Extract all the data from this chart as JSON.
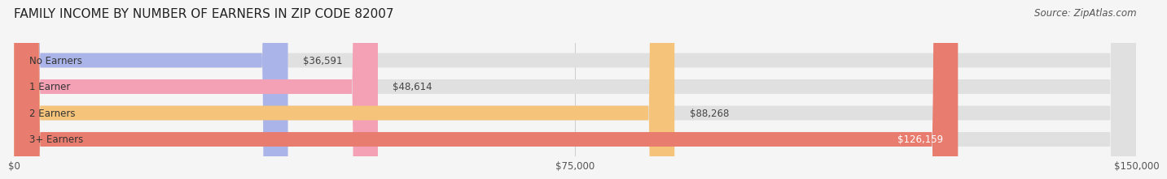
{
  "title": "FAMILY INCOME BY NUMBER OF EARNERS IN ZIP CODE 82007",
  "source": "Source: ZipAtlas.com",
  "categories": [
    "No Earners",
    "1 Earner",
    "2 Earners",
    "3+ Earners"
  ],
  "values": [
    36591,
    48614,
    88268,
    126159
  ],
  "bar_colors": [
    "#aab4e8",
    "#f4a0b5",
    "#f5c47a",
    "#e87c6e"
  ],
  "bar_bg_color": "#e0e0e0",
  "value_labels": [
    "$36,591",
    "$48,614",
    "$88,268",
    "$126,159"
  ],
  "xlim": [
    0,
    150000
  ],
  "xticks": [
    0,
    75000,
    150000
  ],
  "xtick_labels": [
    "$0",
    "$75,000",
    "$150,000"
  ],
  "background_color": "#f5f5f5",
  "bar_height": 0.55,
  "title_fontsize": 11,
  "source_fontsize": 8.5,
  "label_fontsize": 8.5,
  "value_fontsize": 8.5,
  "tick_fontsize": 8.5,
  "inside_label_threshold": 110000
}
